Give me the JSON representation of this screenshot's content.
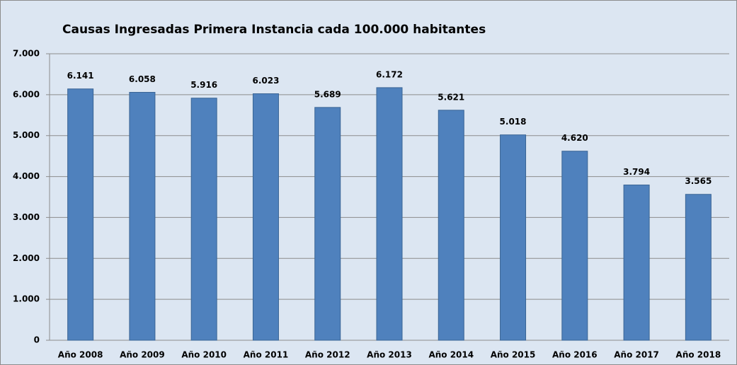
{
  "chart_data": {
    "type": "bar",
    "title": "Causas Ingresadas Primera Instancia cada 100.000 habitantes",
    "categories": [
      "Año 2008",
      "Año 2009",
      "Año 2010",
      "Año 2011",
      "Año 2012",
      "Año 2013",
      "Año 2014",
      "Año 2015",
      "Año 2016",
      "Año 2017",
      "Año 2018"
    ],
    "values": [
      6141,
      6058,
      5916,
      6023,
      5689,
      6172,
      5621,
      5018,
      4620,
      3794,
      3565
    ],
    "value_labels": [
      "6.141",
      "6.058",
      "5.916",
      "6.023",
      "5.689",
      "6.172",
      "5.621",
      "5.018",
      "4.620",
      "3.794",
      "3.565"
    ],
    "color": "#4f81bd",
    "ylim": [
      0,
      7000
    ],
    "yticks": [
      0,
      {
        "value": 1000,
        "label": "1.000"
      },
      {
        "value": 2000,
        "label": "2.000"
      },
      {
        "value": 3000,
        "label": "3.000"
      },
      {
        "value": 4000,
        "label": "4.000"
      },
      {
        "value": 5000,
        "label": "5.000"
      },
      {
        "value": 6000,
        "label": "6.000"
      },
      {
        "value": 7000,
        "label": "7.000"
      }
    ],
    "grid": true
  }
}
